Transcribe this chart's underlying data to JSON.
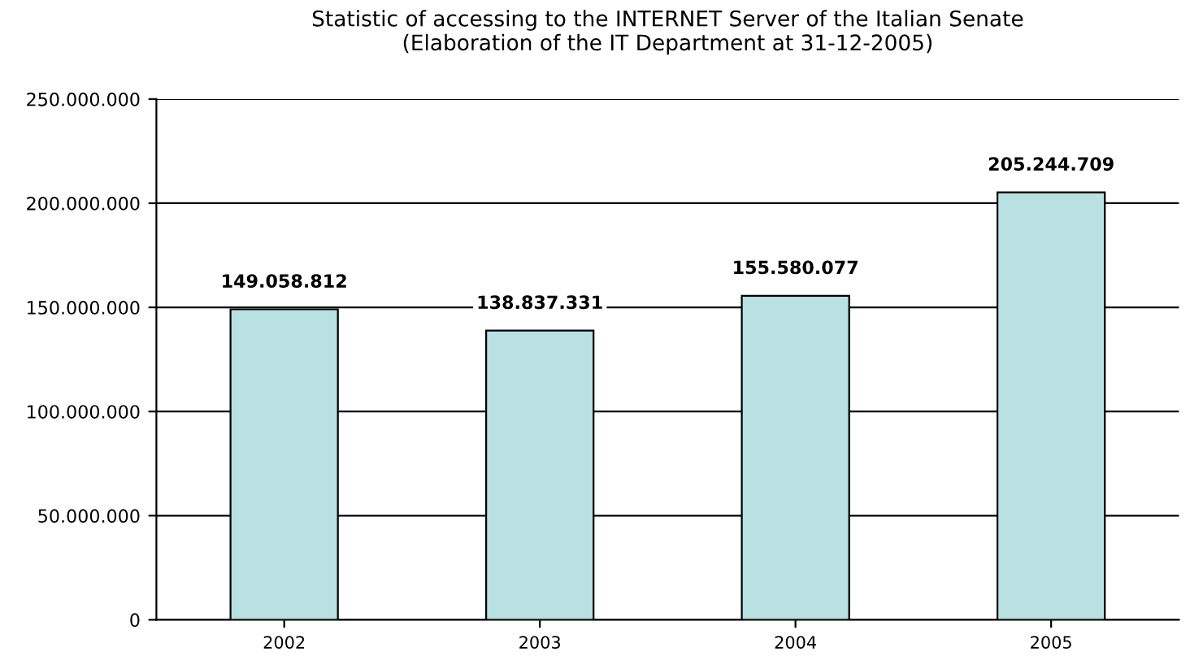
{
  "chart_data": {
    "type": "bar",
    "title": "Statistic of accessing to the INTERNET Server of the Italian Senate\n(Elaboration of the IT Department at 31-12-2005)",
    "categories": [
      "2002",
      "2003",
      "2004",
      "2005"
    ],
    "values": [
      149058812,
      138837331,
      155580077,
      205244709
    ],
    "value_labels": [
      "149.058.812",
      "138.837.331",
      "155.580.077",
      "205.244.709"
    ],
    "color": "#b9e1e1",
    "ylim": [
      0,
      250000000
    ],
    "yticks": [
      {
        "value": 0,
        "label": "0"
      },
      {
        "value": 50000000,
        "label": "50.000.000"
      },
      {
        "value": 100000000,
        "label": "100.000.000"
      },
      {
        "value": 150000000,
        "label": "150.000.000"
      },
      {
        "value": 200000000,
        "label": "200.000.000"
      },
      {
        "value": 250000000,
        "label": "250.000.000"
      }
    ],
    "grid": "y"
  }
}
